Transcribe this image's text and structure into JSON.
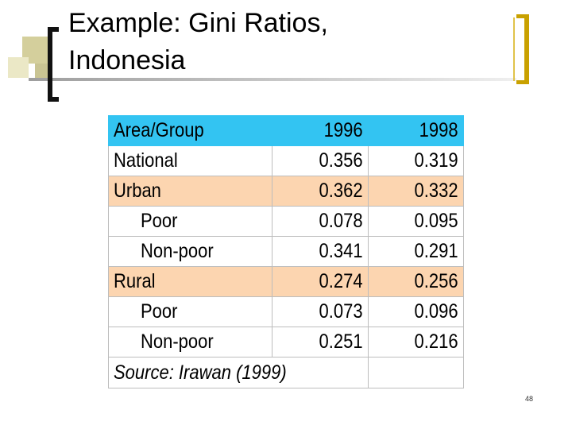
{
  "slide": {
    "title_line1": "Example: Gini Ratios,",
    "title_line2": "Indonesia",
    "page_number": "48"
  },
  "table": {
    "header": [
      "Area/Group",
      "1996",
      "1998"
    ],
    "rows": [
      {
        "label": "National",
        "v1996": "0.356",
        "v1998": "0.319",
        "indent": false,
        "highlight": false
      },
      {
        "label": "Urban",
        "v1996": "0.362",
        "v1998": "0.332",
        "indent": false,
        "highlight": true
      },
      {
        "label": "Poor",
        "v1996": "0.078",
        "v1998": "0.095",
        "indent": true,
        "highlight": false
      },
      {
        "label": "Non-poor",
        "v1996": "0.341",
        "v1998": "0.291",
        "indent": true,
        "highlight": false
      },
      {
        "label": "Rural",
        "v1996": "0.274",
        "v1998": "0.256",
        "indent": false,
        "highlight": true
      },
      {
        "label": "Poor",
        "v1996": "0.073",
        "v1998": "0.096",
        "indent": true,
        "highlight": false
      },
      {
        "label": "Non-poor",
        "v1996": "0.251",
        "v1998": "0.216",
        "indent": true,
        "highlight": false
      }
    ],
    "source": "Source: Irawan (1999)"
  },
  "colors": {
    "header_bg": "#33c4f2",
    "highlight_bg": "#fcd5b0",
    "accent_bracket": "#c9a100"
  }
}
